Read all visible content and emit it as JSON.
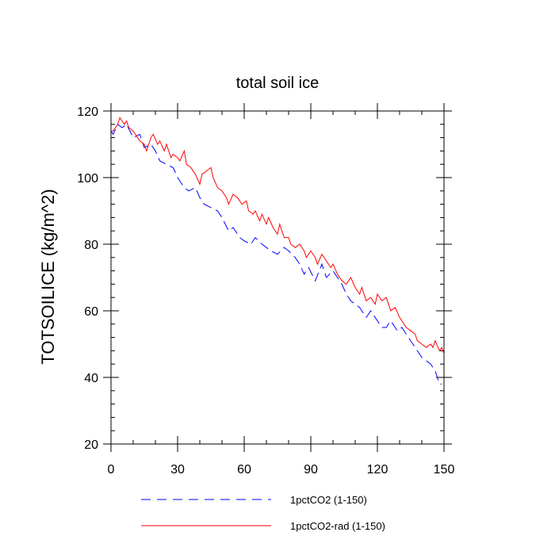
{
  "chart_data": {
    "type": "line",
    "title": "total soil ice",
    "xlabel": "",
    "ylabel": "TOTSOILICE  (kg/m^2)",
    "xlim": [
      0,
      150
    ],
    "ylim": [
      20,
      120
    ],
    "x_ticks": [
      "0",
      "30",
      "60",
      "90",
      "120",
      "150"
    ],
    "y_ticks": [
      "20",
      "40",
      "60",
      "80",
      "100",
      "120"
    ],
    "grid": false,
    "legend_position": "bottom",
    "series": [
      {
        "name": "1pctCO2 (1-150)",
        "color": "#0000ff",
        "dash": true,
        "points": [
          [
            0,
            114
          ],
          [
            1,
            113
          ],
          [
            3,
            116
          ],
          [
            5,
            115
          ],
          [
            7,
            116
          ],
          [
            10,
            112
          ],
          [
            13,
            113
          ],
          [
            15,
            109
          ],
          [
            18,
            110
          ],
          [
            20,
            108
          ],
          [
            22,
            105
          ],
          [
            25,
            104
          ],
          [
            28,
            103
          ],
          [
            30,
            100
          ],
          [
            33,
            97
          ],
          [
            35,
            96
          ],
          [
            38,
            97
          ],
          [
            40,
            94
          ],
          [
            42,
            92
          ],
          [
            45,
            91
          ],
          [
            48,
            90
          ],
          [
            50,
            88
          ],
          [
            53,
            84
          ],
          [
            55,
            85
          ],
          [
            58,
            82
          ],
          [
            60,
            81
          ],
          [
            63,
            80
          ],
          [
            65,
            82
          ],
          [
            68,
            80
          ],
          [
            70,
            79
          ],
          [
            72,
            78
          ],
          [
            75,
            77
          ],
          [
            78,
            79
          ],
          [
            80,
            78
          ],
          [
            83,
            76
          ],
          [
            85,
            74
          ],
          [
            87,
            71
          ],
          [
            89,
            73
          ],
          [
            92,
            69
          ],
          [
            95,
            74
          ],
          [
            97,
            70
          ],
          [
            100,
            72
          ],
          [
            102,
            70
          ],
          [
            104,
            68
          ],
          [
            106,
            65
          ],
          [
            108,
            63
          ],
          [
            110,
            62
          ],
          [
            112,
            61
          ],
          [
            115,
            58
          ],
          [
            117,
            60
          ],
          [
            120,
            57
          ],
          [
            122,
            55
          ],
          [
            124,
            55
          ],
          [
            126,
            57
          ],
          [
            129,
            54
          ],
          [
            131,
            55
          ],
          [
            134,
            52
          ],
          [
            136,
            50
          ],
          [
            138,
            48
          ],
          [
            140,
            46
          ],
          [
            142,
            45
          ],
          [
            144,
            44
          ],
          [
            146,
            42
          ],
          [
            147,
            40
          ],
          [
            148,
            38
          ],
          [
            149,
            38
          ]
        ]
      },
      {
        "name": "1pctCO2-rad (1-150)",
        "color": "#ff0000",
        "dash": false,
        "points": [
          [
            0,
            114
          ],
          [
            1,
            114
          ],
          [
            2,
            115
          ],
          [
            3,
            116
          ],
          [
            4,
            118
          ],
          [
            5,
            117
          ],
          [
            6,
            116
          ],
          [
            7,
            117
          ],
          [
            8,
            115
          ],
          [
            10,
            114
          ],
          [
            12,
            112
          ],
          [
            13,
            111
          ],
          [
            15,
            110
          ],
          [
            16,
            108
          ],
          [
            18,
            112
          ],
          [
            19,
            113
          ],
          [
            21,
            110
          ],
          [
            22,
            111
          ],
          [
            24,
            108
          ],
          [
            25,
            110
          ],
          [
            27,
            106
          ],
          [
            28,
            107
          ],
          [
            30,
            106
          ],
          [
            31,
            105
          ],
          [
            33,
            108
          ],
          [
            34,
            104
          ],
          [
            36,
            103
          ],
          [
            38,
            101
          ],
          [
            40,
            98
          ],
          [
            41,
            101
          ],
          [
            43,
            102
          ],
          [
            45,
            103
          ],
          [
            46,
            100
          ],
          [
            48,
            97
          ],
          [
            50,
            96
          ],
          [
            52,
            94
          ],
          [
            53,
            92
          ],
          [
            55,
            95
          ],
          [
            57,
            94
          ],
          [
            59,
            92
          ],
          [
            61,
            93
          ],
          [
            62,
            90
          ],
          [
            64,
            89
          ],
          [
            65,
            90
          ],
          [
            67,
            87
          ],
          [
            68,
            89
          ],
          [
            70,
            86
          ],
          [
            71,
            88
          ],
          [
            73,
            85
          ],
          [
            75,
            83
          ],
          [
            76,
            86
          ],
          [
            78,
            82
          ],
          [
            80,
            82
          ],
          [
            81,
            80
          ],
          [
            83,
            79
          ],
          [
            85,
            80
          ],
          [
            87,
            78
          ],
          [
            88,
            76
          ],
          [
            90,
            78
          ],
          [
            92,
            76
          ],
          [
            93,
            74
          ],
          [
            95,
            77
          ],
          [
            97,
            75
          ],
          [
            99,
            73
          ],
          [
            100,
            74
          ],
          [
            102,
            71
          ],
          [
            104,
            69
          ],
          [
            106,
            68
          ],
          [
            108,
            70
          ],
          [
            110,
            67
          ],
          [
            112,
            65
          ],
          [
            113,
            67
          ],
          [
            115,
            63
          ],
          [
            117,
            64
          ],
          [
            119,
            62
          ],
          [
            120,
            65
          ],
          [
            122,
            63
          ],
          [
            124,
            64
          ],
          [
            126,
            60
          ],
          [
            128,
            61
          ],
          [
            130,
            58
          ],
          [
            131,
            57
          ],
          [
            133,
            55
          ],
          [
            135,
            54
          ],
          [
            137,
            53
          ],
          [
            138,
            51
          ],
          [
            140,
            50
          ],
          [
            142,
            49
          ],
          [
            144,
            50
          ],
          [
            145,
            49
          ],
          [
            146,
            51
          ],
          [
            148,
            48
          ],
          [
            149,
            49
          ],
          [
            150,
            47
          ]
        ]
      }
    ]
  }
}
